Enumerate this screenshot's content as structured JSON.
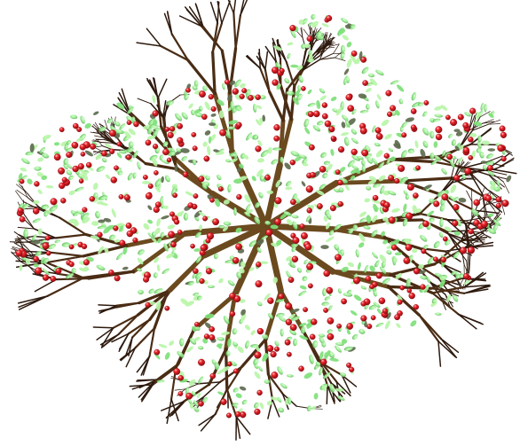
{
  "image": {
    "subject": "tree-canopy-top-view",
    "background_color": "#ffffff",
    "colors": {
      "branch_dark": "#2e1a0e",
      "branch_mid": "#4a2c14",
      "branch_light": "#6b4a1f",
      "leaf_light": "#b8f5a8",
      "leaf_mid": "#7fe07a",
      "leaf_dark": "#3e7a3a",
      "leaf_shadow": "#5e6b4f",
      "berry_red": "#e0151c",
      "berry_dark": "#8c0a10",
      "berry_highlight": "#ffd0d0"
    }
  }
}
